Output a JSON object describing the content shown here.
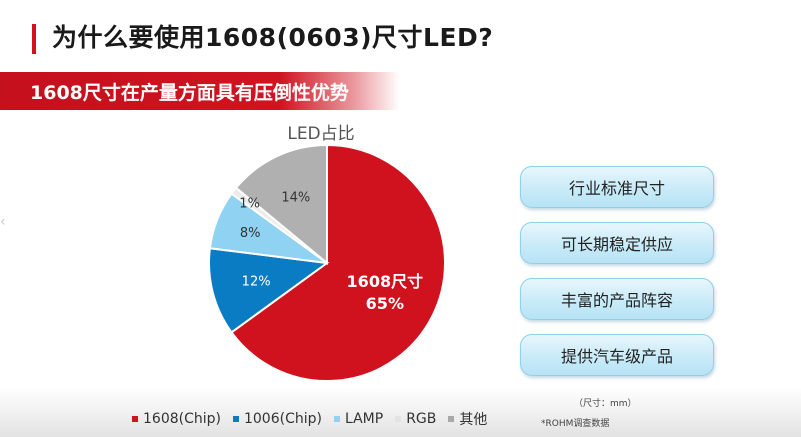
{
  "slide": {
    "title": "为什么要使用1608(0603)尺寸LED?",
    "banner": "1608尺寸在产量方面具有压倒性优势",
    "unit_note": "（尺寸：mm）",
    "source_note": "*ROHM调查数据"
  },
  "callouts": [
    "行业标准尺寸",
    "可长期稳定供应",
    "丰富的产品阵容",
    "提供汽车级产品"
  ],
  "colors": {
    "accent": "#d6101f",
    "slice_1608": "#d0121f",
    "slice_1006": "#0a7cc4",
    "slice_lamp": "#8fd2f2",
    "slice_rgb": "#ececec",
    "slice_other": "#b0b0b0"
  },
  "chart_data": {
    "type": "pie",
    "title": "LED占比",
    "categories": [
      "1608(Chip)",
      "1006(Chip)",
      "LAMP",
      "RGB",
      "其他"
    ],
    "values": [
      65,
      12,
      8,
      1,
      14
    ],
    "labels": [
      "1608尺寸\n65%",
      "12%",
      "8%",
      "1%",
      "14%"
    ],
    "legend_position": "bottom"
  }
}
